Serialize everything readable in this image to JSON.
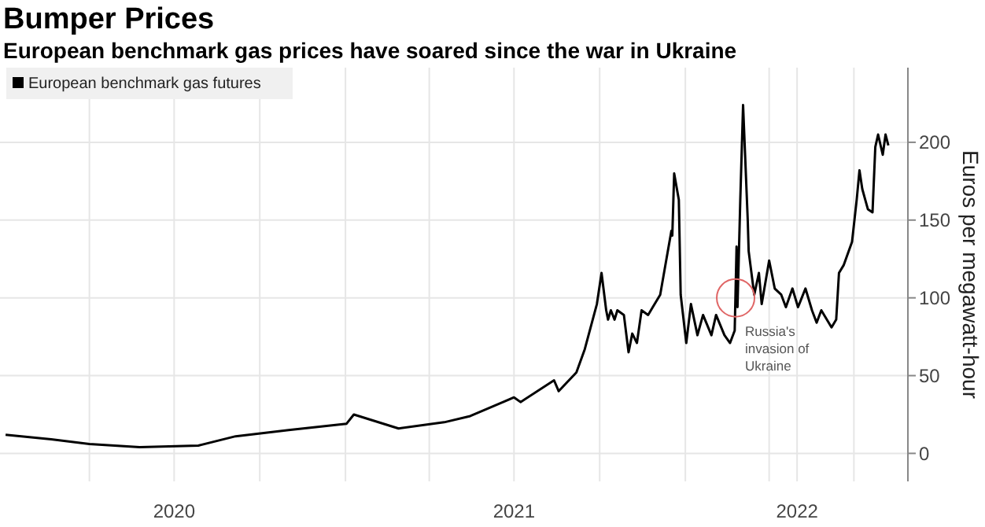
{
  "chart_data": {
    "type": "line",
    "title": "Bumper Prices",
    "subtitle": "European benchmark gas prices have soared since the war in Ukraine",
    "ylabel": "Euros per megawatt-hour",
    "x": [
      "2020-01-02",
      "2020-02-20",
      "2020-04-01",
      "2020-05-25",
      "2020-07-27",
      "2020-09-05",
      "2020-11-01",
      "2021-01-02",
      "2021-01-10",
      "2021-02-27",
      "2021-04-17",
      "2021-05-15",
      "2021-07-01",
      "2021-07-08",
      "2021-08-13",
      "2021-08-18",
      "2021-09-06",
      "2021-09-15",
      "2021-09-28",
      "2021-10-03",
      "2021-10-08",
      "2021-10-10",
      "2021-10-13",
      "2021-10-17",
      "2021-10-20",
      "2021-10-27",
      "2021-11-01",
      "2021-11-05",
      "2021-11-10",
      "2021-11-15",
      "2021-11-22",
      "2021-11-27",
      "2021-12-05",
      "2021-12-12",
      "2021-12-17",
      "2021-12-18",
      "2021-12-20",
      "2021-12-25",
      "2021-12-27",
      "2022-01-02",
      "2022-01-07",
      "2022-01-14",
      "2022-01-20",
      "2022-01-29",
      "2022-02-03",
      "2022-02-12",
      "2022-02-18",
      "2022-02-23",
      "2022-02-25",
      "2022-02-26",
      "2022-03-01",
      "2022-03-04",
      "2022-03-09",
      "2022-03-10",
      "2022-03-16",
      "2022-03-21",
      "2022-03-24",
      "2022-04-01",
      "2022-04-07",
      "2022-04-14",
      "2022-04-19",
      "2022-04-26",
      "2022-05-02",
      "2022-05-10",
      "2022-05-17",
      "2022-05-22",
      "2022-05-27",
      "2022-06-07",
      "2022-06-12",
      "2022-06-15",
      "2022-06-20",
      "2022-06-29",
      "2022-07-04",
      "2022-07-07",
      "2022-07-10",
      "2022-07-16",
      "2022-07-21",
      "2022-07-24",
      "2022-07-27",
      "2022-08-01",
      "2022-08-04",
      "2022-08-07"
    ],
    "series": [
      {
        "name": "European benchmark gas futures",
        "color": "#000000",
        "values": [
          12,
          9,
          6,
          4,
          5,
          11,
          15,
          19,
          25,
          16,
          20,
          24,
          36,
          33,
          47,
          40,
          52,
          67,
          96,
          116,
          92,
          86,
          92,
          86,
          92,
          89,
          65,
          77,
          71,
          92,
          89,
          94,
          102,
          126,
          143,
          140,
          180,
          163,
          102,
          71,
          96,
          76,
          89,
          76,
          89,
          76,
          71,
          79,
          133,
          94,
          163,
          224,
          150,
          130,
          102,
          116,
          96,
          124,
          106,
          102,
          94,
          106,
          94,
          106,
          92,
          84,
          92,
          81,
          86,
          116,
          121,
          136,
          163,
          182,
          170,
          157,
          155,
          197,
          205,
          192,
          205,
          198
        ]
      }
    ],
    "xlim": [
      "2019-12-27",
      "2022-08-28"
    ],
    "xticks": [
      {
        "value": "2020-04-01",
        "label": null
      },
      {
        "value": "2020-07-01",
        "label": "2020"
      },
      {
        "value": "2020-10-01",
        "label": null
      },
      {
        "value": "2021-01-01",
        "label": null
      },
      {
        "value": "2021-04-01",
        "label": null
      },
      {
        "value": "2021-07-01",
        "label": "2021"
      },
      {
        "value": "2021-10-01",
        "label": null
      },
      {
        "value": "2022-01-01",
        "label": null
      },
      {
        "value": "2022-04-01",
        "label": null
      },
      {
        "value": "2022-05-01",
        "label": "2022"
      },
      {
        "value": "2022-07-01",
        "label": null
      }
    ],
    "ylim": [
      -18,
      248
    ],
    "yticks": [
      0,
      50,
      100,
      150,
      200
    ],
    "grid": true,
    "legend": "top left",
    "marker": "none",
    "line_style": "solid",
    "annotations": [
      {
        "text": "Russia's\ninvasion of\nUkraine",
        "x": "2022-02-24",
        "y": 100
      }
    ]
  }
}
